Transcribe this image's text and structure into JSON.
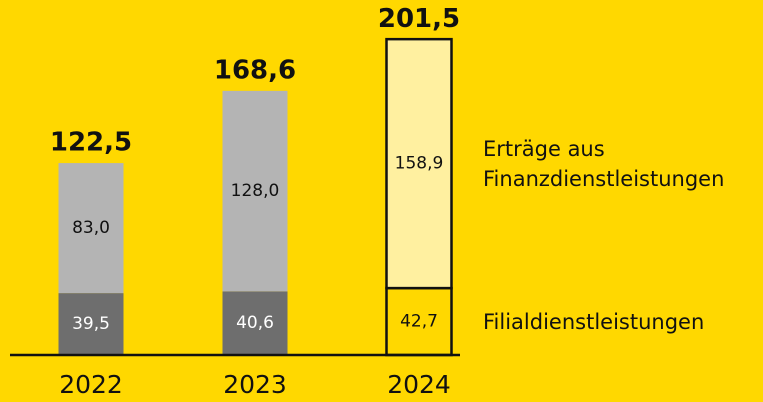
{
  "chart_data": {
    "type": "stacked_bar",
    "categories": [
      "2022",
      "2023",
      "2024"
    ],
    "series": [
      {
        "name": "Filialdienstleistungen",
        "colors": [
          "#6e6e6e",
          "#6e6e6e",
          "#ffd800"
        ],
        "values": [
          39.5,
          40.6,
          42.7
        ],
        "value_labels": [
          "39,5",
          "40,6",
          "42,7"
        ],
        "label_colors": [
          "#ffffff",
          "#ffffff",
          "#111111"
        ]
      },
      {
        "name": "Erträge aus Finanzdienstleistungen",
        "colors": [
          "#b4b4b4",
          "#b4b4b4",
          "#fff0a0"
        ],
        "values": [
          83.0,
          128.0,
          158.9
        ],
        "value_labels": [
          "83,0",
          "128,0",
          "158,9"
        ],
        "label_colors": [
          "#111111",
          "#111111",
          "#111111"
        ]
      }
    ],
    "totals": [
      122.5,
      168.6,
      201.5
    ],
    "total_labels": [
      "122,5",
      "168,6",
      "201,5"
    ],
    "outlined": [
      false,
      false,
      true
    ],
    "ylim": [
      0,
      210
    ]
  }
}
